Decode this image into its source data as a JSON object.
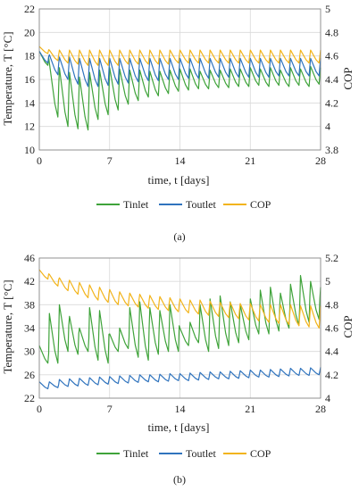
{
  "chart_data": [
    {
      "type": "line",
      "panel_label": "(a)",
      "xlabel": "time, t [days]",
      "ylabel_left": "Temperature, T [°C]",
      "ylabel_right": "COP",
      "xlim": [
        0,
        28
      ],
      "ylim_left": [
        10,
        22
      ],
      "ylim_right": [
        3.8,
        5.0
      ],
      "x_ticks": [
        "0",
        "7",
        "14",
        "21",
        "28"
      ],
      "y_ticks_left": [
        "10",
        "12",
        "14",
        "16",
        "18",
        "20",
        "22"
      ],
      "y_ticks_right": [
        "3.8",
        "4",
        "4.2",
        "4.4",
        "4.6",
        "4.8",
        "5"
      ],
      "grid": true,
      "legend_position": "bottom",
      "days": [
        0,
        1,
        2,
        3,
        4,
        5,
        6,
        7,
        8,
        9,
        10,
        11,
        12,
        13,
        14,
        15,
        16,
        17,
        18,
        19,
        20,
        21,
        22,
        23,
        24,
        25,
        26,
        27,
        28
      ],
      "series": [
        {
          "name": "Tinlet",
          "axis": "left",
          "color": "#3fa33a",
          "daily_high": [
            18.4,
            17.4,
            17.0,
            16.6,
            16.2,
            16.6,
            16.8,
            17.0,
            16.9,
            16.8,
            16.8,
            16.7,
            16.7,
            16.8,
            16.9,
            16.9,
            16.7,
            16.8,
            16.8,
            16.9,
            16.9,
            17.0,
            16.9,
            17.0,
            16.8,
            17.0,
            16.9,
            17.1,
            17.0
          ],
          "daily_low": [
            17.2,
            12.8,
            12.0,
            11.8,
            11.7,
            12.6,
            13.0,
            13.4,
            13.9,
            14.2,
            14.5,
            14.6,
            14.8,
            15.0,
            15.1,
            15.2,
            15.2,
            15.3,
            15.3,
            15.4,
            15.4,
            15.5,
            15.4,
            15.5,
            15.4,
            15.5,
            15.4,
            15.6,
            15.6
          ]
        },
        {
          "name": "Toutlet",
          "axis": "left",
          "color": "#2f73bd",
          "daily_high": [
            18.4,
            18.1,
            17.9,
            17.9,
            17.8,
            17.8,
            17.8,
            17.8,
            17.8,
            17.8,
            17.8,
            17.8,
            17.8,
            17.8,
            17.8,
            17.8,
            17.8,
            17.8,
            17.8,
            17.8,
            17.8,
            17.8,
            17.8,
            17.8,
            17.8,
            17.8,
            17.8,
            17.8,
            17.8
          ],
          "daily_low": [
            17.4,
            16.4,
            16.0,
            15.6,
            15.4,
            15.4,
            15.5,
            15.6,
            15.7,
            15.8,
            15.9,
            15.9,
            16.0,
            16.0,
            16.1,
            16.1,
            16.1,
            16.2,
            16.2,
            16.2,
            16.2,
            16.2,
            16.2,
            16.3,
            16.3,
            16.3,
            16.3,
            16.3,
            16.3
          ]
        },
        {
          "name": "COP",
          "axis": "right",
          "color": "#f2b41b",
          "daily_high": [
            4.68,
            4.65,
            4.65,
            4.65,
            4.65,
            4.65,
            4.65,
            4.65,
            4.65,
            4.65,
            4.65,
            4.65,
            4.65,
            4.65,
            4.65,
            4.65,
            4.65,
            4.65,
            4.65,
            4.65,
            4.65,
            4.65,
            4.65,
            4.65,
            4.65,
            4.65,
            4.65,
            4.65,
            4.65
          ],
          "daily_low": [
            4.62,
            4.56,
            4.54,
            4.53,
            4.52,
            4.52,
            4.52,
            4.52,
            4.53,
            4.53,
            4.53,
            4.53,
            4.53,
            4.54,
            4.54,
            4.54,
            4.54,
            4.54,
            4.54,
            4.54,
            4.54,
            4.54,
            4.54,
            4.54,
            4.54,
            4.54,
            4.54,
            4.54,
            4.54
          ]
        }
      ]
    },
    {
      "type": "line",
      "panel_label": "(b)",
      "xlabel": "time, t [days]",
      "ylabel_left": "Temperature, T [°C]",
      "ylabel_right": "COP",
      "xlim": [
        0,
        28
      ],
      "ylim_left": [
        22,
        46
      ],
      "ylim_right": [
        4.0,
        5.2
      ],
      "x_ticks": [
        "0",
        "7",
        "14",
        "21",
        "28"
      ],
      "y_ticks_left": [
        "22",
        "26",
        "30",
        "34",
        "38",
        "42",
        "46"
      ],
      "y_ticks_right": [
        "4",
        "4.2",
        "4.4",
        "4.6",
        "4.8",
        "5",
        "5.2"
      ],
      "grid": true,
      "legend_position": "bottom",
      "days": [
        0,
        1,
        2,
        3,
        4,
        5,
        6,
        7,
        8,
        9,
        10,
        11,
        12,
        13,
        14,
        15,
        16,
        17,
        18,
        19,
        20,
        21,
        22,
        23,
        24,
        25,
        26,
        27,
        28
      ],
      "series": [
        {
          "name": "Tinlet",
          "axis": "left",
          "color": "#3fa33a",
          "daily_high": [
            31.0,
            36.5,
            38.0,
            36.0,
            34.0,
            37.5,
            37.0,
            33.0,
            34.0,
            37.5,
            38.5,
            37.5,
            37.0,
            38.0,
            34.0,
            35.0,
            38.0,
            39.0,
            39.5,
            38.5,
            38.0,
            39.0,
            40.5,
            41.0,
            40.0,
            41.5,
            43.0,
            42.0,
            41.0
          ],
          "daily_low": [
            28.0,
            28.0,
            30.0,
            29.5,
            30.0,
            28.5,
            28.0,
            30.0,
            30.5,
            29.0,
            28.5,
            29.5,
            30.0,
            30.0,
            31.0,
            31.5,
            30.0,
            30.5,
            31.0,
            31.5,
            32.0,
            33.0,
            33.0,
            33.5,
            34.0,
            34.5,
            35.0,
            35.5,
            36.0
          ]
        },
        {
          "name": "Toutlet",
          "axis": "left",
          "color": "#2f73bd",
          "daily_high": [
            24.8,
            24.8,
            25.2,
            25.3,
            25.4,
            25.5,
            25.6,
            25.7,
            25.8,
            25.9,
            26.0,
            26.0,
            26.1,
            26.2,
            26.2,
            26.3,
            26.4,
            26.5,
            26.5,
            26.6,
            26.7,
            26.8,
            26.8,
            26.9,
            27.0,
            27.1,
            27.1,
            27.2,
            27.3
          ],
          "daily_low": [
            23.6,
            23.8,
            24.0,
            24.1,
            24.2,
            24.3,
            24.4,
            24.5,
            24.6,
            24.7,
            24.8,
            24.8,
            24.9,
            25.0,
            25.0,
            25.1,
            25.2,
            25.3,
            25.3,
            25.4,
            25.5,
            25.6,
            25.6,
            25.7,
            25.8,
            25.9,
            25.9,
            26.0,
            26.1
          ]
        },
        {
          "name": "COP",
          "axis": "right",
          "color": "#f2b41b",
          "daily_high": [
            5.1,
            5.06,
            5.03,
            5.01,
            4.99,
            4.97,
            4.95,
            4.93,
            4.91,
            4.9,
            4.89,
            4.88,
            4.87,
            4.86,
            4.85,
            4.84,
            4.84,
            4.83,
            4.82,
            4.82,
            4.81,
            4.81,
            4.8,
            4.8,
            4.8,
            4.8,
            4.79,
            4.79,
            4.79
          ],
          "daily_low": [
            5.02,
            4.96,
            4.92,
            4.89,
            4.86,
            4.84,
            4.82,
            4.8,
            4.79,
            4.78,
            4.77,
            4.76,
            4.75,
            4.74,
            4.73,
            4.72,
            4.71,
            4.7,
            4.69,
            4.68,
            4.67,
            4.66,
            4.65,
            4.64,
            4.63,
            4.62,
            4.61,
            4.6,
            4.6
          ]
        }
      ]
    }
  ],
  "styles": {
    "grid_color": "#d9d9d9",
    "axis_color": "#7f7f7f",
    "text_color": "#222222"
  }
}
